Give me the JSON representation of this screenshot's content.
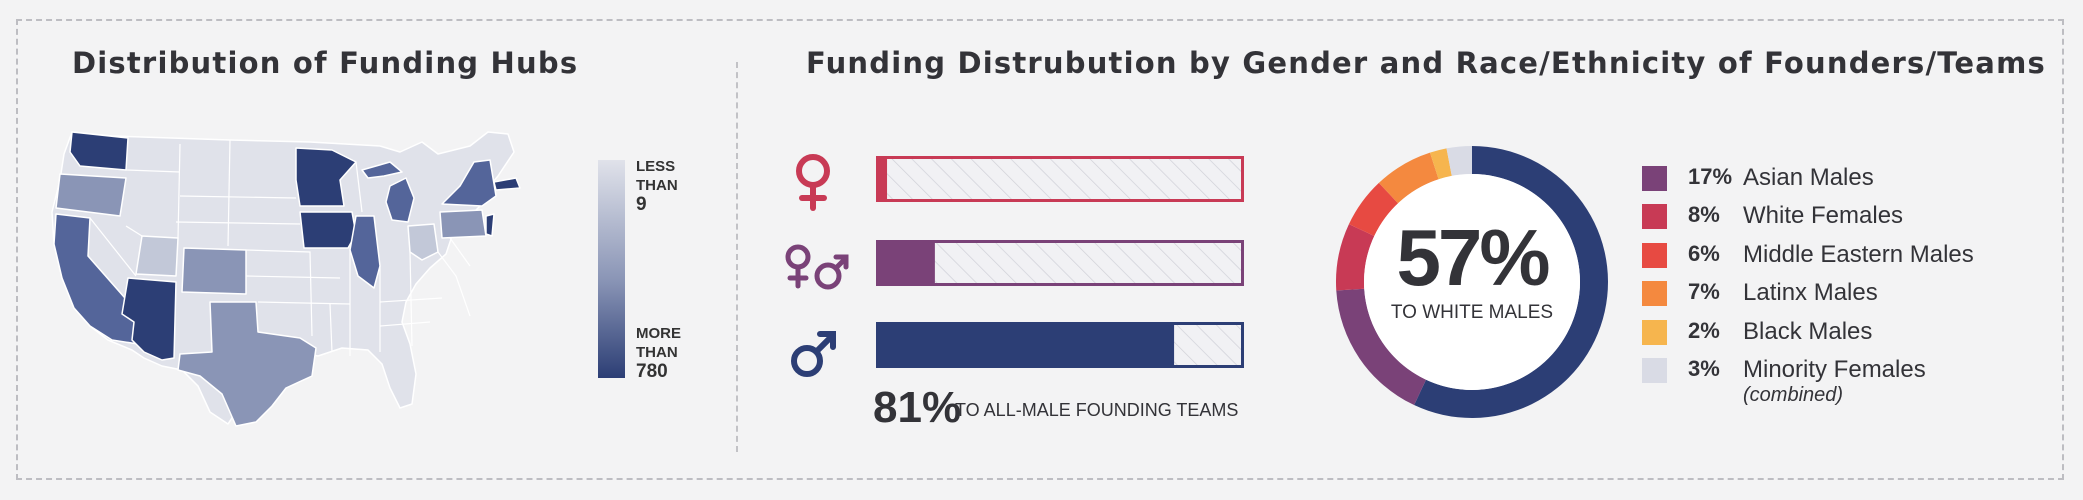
{
  "titles": {
    "map": "Distribution of Funding Hubs",
    "chart": "Funding Distrubution by Gender and Race/Ethnicity of Founders/Teams"
  },
  "map_legend": {
    "low_label": "LESS\nTHAN",
    "low_value": "9",
    "high_label": "MORE\nTHAN",
    "high_value": "780",
    "low_color": "#e0e2ea",
    "high_color": "#2c3e75"
  },
  "chart_data": [
    {
      "type": "bar",
      "orientation": "horizontal",
      "categories": [
        "female-symbol",
        "mixed-gender-symbol",
        "male-symbol"
      ],
      "values": [
        3,
        16,
        81
      ],
      "unit": "%",
      "xlim": [
        0,
        100
      ],
      "colors": [
        "#c83a55",
        "#7a4278",
        "#2c3e75"
      ],
      "annotation": {
        "value": "81%",
        "text": "TO ALL-MALE FOUNDING TEAMS"
      }
    },
    {
      "type": "pie",
      "donut": true,
      "center": {
        "value": "57%",
        "text": "TO WHITE MALES"
      },
      "slices": [
        {
          "label": "White Males",
          "value": 57,
          "color": "#2c3e75"
        },
        {
          "label": "Asian Males",
          "value": 17,
          "color": "#7a4278"
        },
        {
          "label": "White Females",
          "value": 8,
          "color": "#c83a55"
        },
        {
          "label": "Middle Eastern Males",
          "value": 6,
          "color": "#e74a42"
        },
        {
          "label": "Latinx Males",
          "value": 7,
          "color": "#f4893f"
        },
        {
          "label": "Black Males",
          "value": 2,
          "color": "#f6b54e"
        },
        {
          "label": "Minority Females",
          "value": 3,
          "color": "#d9dbe5"
        }
      ],
      "legend": [
        {
          "pct": "17%",
          "label": "Asian Males",
          "color": "#7a4278"
        },
        {
          "pct": "8%",
          "label": "White Females",
          "color": "#c83a55"
        },
        {
          "pct": "6%",
          "label": "Middle Eastern Males",
          "color": "#e74a42"
        },
        {
          "pct": "7%",
          "label": "Latinx Males",
          "color": "#f4893f"
        },
        {
          "pct": "2%",
          "label": "Black Males",
          "color": "#f6b54e"
        },
        {
          "pct": "3%",
          "label": "Minority Females",
          "sub": "(combined)",
          "color": "#d9dbe5"
        }
      ]
    }
  ],
  "gender_icons": [
    "female-icon",
    "female-male-icon",
    "male-icon"
  ]
}
